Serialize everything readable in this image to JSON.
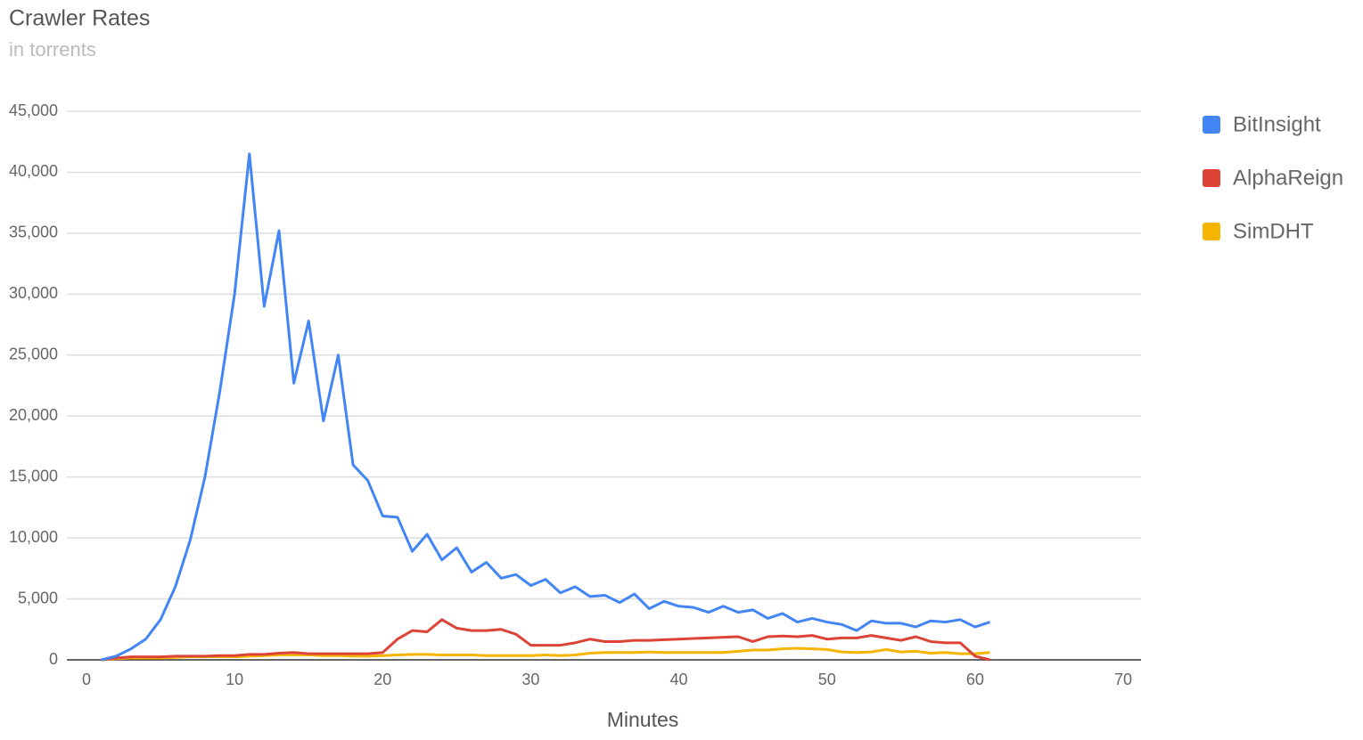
{
  "chart_data": {
    "type": "line",
    "title": "Crawler Rates",
    "subtitle": "in torrents",
    "x_label": "Minutes",
    "x": [
      1,
      2,
      3,
      4,
      5,
      6,
      7,
      8,
      9,
      10,
      11,
      12,
      13,
      14,
      15,
      16,
      17,
      18,
      19,
      20,
      21,
      22,
      23,
      24,
      25,
      26,
      27,
      28,
      29,
      30,
      31,
      32,
      33,
      34,
      35,
      36,
      37,
      38,
      39,
      40,
      41,
      42,
      43,
      44,
      45,
      46,
      47,
      48,
      49,
      50,
      51,
      52,
      53,
      54,
      55,
      56,
      57,
      58,
      59,
      60,
      61
    ],
    "series": [
      {
        "name": "BitInsight",
        "color": "#4285f4",
        "values": [
          0,
          300,
          900,
          1700,
          3300,
          6000,
          9800,
          15000,
          22000,
          30000,
          41500,
          29000,
          35200,
          22700,
          27800,
          19600,
          25000,
          16000,
          14700,
          11800,
          11700,
          8900,
          10300,
          8200,
          9200,
          7200,
          8000,
          6700,
          7000,
          6100,
          6600,
          5500,
          6000,
          5200,
          5300,
          4700,
          5400,
          4200,
          4800,
          4400,
          4300,
          3900,
          4400,
          3900,
          4100,
          3400,
          3800,
          3100,
          3400,
          3100,
          2900,
          2400,
          3200,
          3000,
          3000,
          2700,
          3200,
          3100,
          3300,
          2700,
          3100
        ]
      },
      {
        "name": "AlphaReign",
        "color": "#db4437",
        "values": [
          0,
          150,
          250,
          250,
          250,
          300,
          300,
          300,
          350,
          350,
          450,
          450,
          550,
          600,
          500,
          500,
          500,
          500,
          500,
          600,
          1700,
          2400,
          2300,
          3300,
          2600,
          2400,
          2400,
          2500,
          2100,
          1200,
          1200,
          1200,
          1400,
          1700,
          1500,
          1500,
          1600,
          1600,
          1650,
          1700,
          1750,
          1800,
          1850,
          1900,
          1500,
          1900,
          1950,
          1900,
          2000,
          1700,
          1800,
          1800,
          2000,
          1800,
          1600,
          1900,
          1500,
          1400,
          1400,
          300,
          0
        ]
      },
      {
        "name": "SimDHT",
        "color": "#f4b400",
        "values": [
          0,
          100,
          150,
          150,
          150,
          200,
          250,
          250,
          250,
          250,
          300,
          350,
          400,
          400,
          400,
          350,
          350,
          300,
          300,
          350,
          400,
          450,
          450,
          400,
          400,
          400,
          350,
          350,
          350,
          350,
          400,
          350,
          400,
          550,
          600,
          600,
          600,
          650,
          600,
          600,
          600,
          600,
          600,
          700,
          800,
          800,
          900,
          950,
          900,
          850,
          650,
          600,
          650,
          850,
          650,
          700,
          550,
          600,
          500,
          500,
          600
        ]
      }
    ],
    "xlim": [
      0,
      70
    ],
    "xticks": [
      0,
      10,
      20,
      30,
      40,
      50,
      60,
      70
    ],
    "ylim": [
      0,
      45000
    ],
    "yticks": [
      0,
      {
        "value": 5000,
        "label": "5,000"
      },
      {
        "value": 10000,
        "label": "10,000"
      },
      {
        "value": 15000,
        "label": "15,000"
      },
      {
        "value": 20000,
        "label": "20,000"
      },
      {
        "value": 25000,
        "label": "25,000"
      },
      {
        "value": 30000,
        "label": "30,000"
      },
      {
        "value": 35000,
        "label": "35,000"
      },
      {
        "value": 40000,
        "label": "40,000"
      },
      {
        "value": 45000,
        "label": "45,000"
      }
    ],
    "grid": true,
    "legend": "right"
  }
}
